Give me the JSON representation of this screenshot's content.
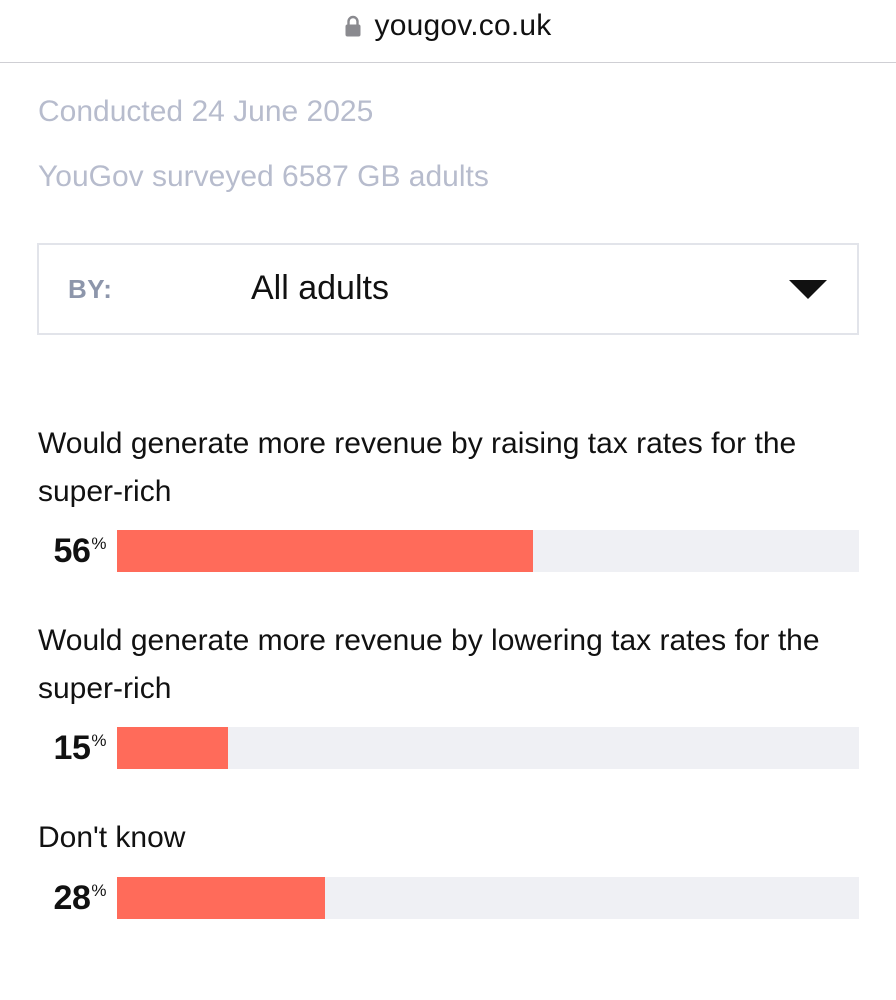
{
  "browser": {
    "url": "yougov.co.uk",
    "lock_icon": "lock-icon"
  },
  "survey": {
    "conducted": "Conducted 24 June 2025",
    "sample": "YouGov surveyed 6587 GB adults"
  },
  "filter": {
    "label": "BY:",
    "value": "All adults",
    "icon": "caret-down-icon"
  },
  "colors": {
    "bar_fill": "#ff6b5a",
    "bar_track": "#eff0f4",
    "muted_text": "#b7bccd"
  },
  "results": [
    {
      "label": "Would generate more revenue by raising tax rates for the super-rich",
      "value": "56",
      "unit": "%",
      "fraction": 0.56
    },
    {
      "label": "Would generate more revenue by lowering tax rates for the super-rich",
      "value": "15",
      "unit": "%",
      "fraction": 0.15
    },
    {
      "label": "Don't know",
      "value": "28",
      "unit": "%",
      "fraction": 0.28
    }
  ]
}
